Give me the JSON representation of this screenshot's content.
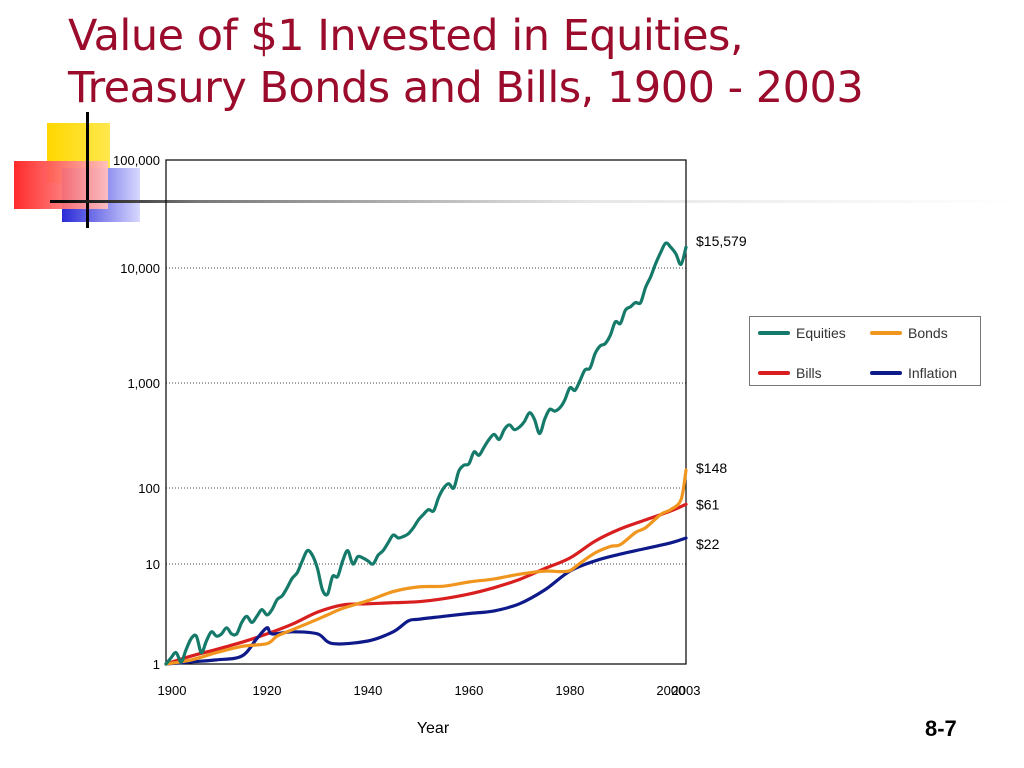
{
  "slide": {
    "title_line1": "Value of $1 Invested in Equities,",
    "title_line2": "Treasury Bonds and Bills, 1900 - 2003",
    "page_number": "8-7"
  },
  "colors": {
    "title": "#9b0c2c",
    "equities": "#167a6a",
    "bonds": "#f0961e",
    "bills": "#d81e1e",
    "inflation": "#0f1a8a"
  },
  "chart_data": {
    "type": "line",
    "title": "",
    "xlabel": "Year",
    "ylabel": "",
    "yscale": "log",
    "xlim": [
      1900,
      2003
    ],
    "ylim": [
      1,
      100000
    ],
    "xticks": [
      1900,
      1920,
      1940,
      1960,
      1980,
      2000,
      2003
    ],
    "ytick_labels": [
      "1",
      "10",
      "100",
      "1,000",
      "10,000",
      "100,000"
    ],
    "yticks": [
      1,
      10,
      100,
      1000,
      10000,
      100000
    ],
    "grid": "horizontal dotted",
    "legend_position": "right",
    "series": [
      {
        "name": "Equities",
        "color": "#167a6a",
        "end_label": "$15,579",
        "points": [
          [
            1900,
            1
          ],
          [
            1901,
            1.15
          ],
          [
            1902,
            1.3
          ],
          [
            1903,
            1.05
          ],
          [
            1904,
            1.4
          ],
          [
            1905,
            1.8
          ],
          [
            1906,
            1.9
          ],
          [
            1907,
            1.3
          ],
          [
            1908,
            1.7
          ],
          [
            1909,
            2.1
          ],
          [
            1910,
            1.9
          ],
          [
            1911,
            2
          ],
          [
            1912,
            2.3
          ],
          [
            1913,
            2
          ],
          [
            1914,
            2
          ],
          [
            1915,
            2.6
          ],
          [
            1916,
            3
          ],
          [
            1917,
            2.6
          ],
          [
            1918,
            3
          ],
          [
            1919,
            3.5
          ],
          [
            1920,
            3.1
          ],
          [
            1921,
            3.5
          ],
          [
            1922,
            4.4
          ],
          [
            1923,
            4.8
          ],
          [
            1924,
            5.8
          ],
          [
            1925,
            7.2
          ],
          [
            1926,
            8.2
          ],
          [
            1927,
            11
          ],
          [
            1928,
            15
          ],
          [
            1929,
            13
          ],
          [
            1930,
            9
          ],
          [
            1931,
            5.5
          ],
          [
            1932,
            5
          ],
          [
            1933,
            7.5
          ],
          [
            1934,
            7.5
          ],
          [
            1935,
            11
          ],
          [
            1936,
            15
          ],
          [
            1937,
            10
          ],
          [
            1938,
            12.5
          ],
          [
            1939,
            12
          ],
          [
            1940,
            11
          ],
          [
            1941,
            10
          ],
          [
            1942,
            13
          ],
          [
            1943,
            15
          ],
          [
            1944,
            19
          ],
          [
            1945,
            24
          ],
          [
            1946,
            22
          ],
          [
            1947,
            23
          ],
          [
            1948,
            25
          ],
          [
            1949,
            30
          ],
          [
            1950,
            38
          ],
          [
            1951,
            45
          ],
          [
            1952,
            52
          ],
          [
            1953,
            50
          ],
          [
            1954,
            75
          ],
          [
            1955,
            100
          ],
          [
            1956,
            110
          ],
          [
            1957,
            100
          ],
          [
            1958,
            145
          ],
          [
            1959,
            165
          ],
          [
            1960,
            170
          ],
          [
            1961,
            220
          ],
          [
            1962,
            205
          ],
          [
            1963,
            245
          ],
          [
            1964,
            290
          ],
          [
            1965,
            325
          ],
          [
            1966,
            290
          ],
          [
            1967,
            360
          ],
          [
            1968,
            400
          ],
          [
            1969,
            360
          ],
          [
            1970,
            380
          ],
          [
            1971,
            430
          ],
          [
            1972,
            520
          ],
          [
            1973,
            450
          ],
          [
            1974,
            330
          ],
          [
            1975,
            450
          ],
          [
            1976,
            560
          ],
          [
            1977,
            540
          ],
          [
            1978,
            580
          ],
          [
            1979,
            690
          ],
          [
            1980,
            900
          ],
          [
            1981,
            850
          ],
          [
            1982,
            1050
          ],
          [
            1983,
            1300
          ],
          [
            1984,
            1350
          ],
          [
            1985,
            1800
          ],
          [
            1986,
            2100
          ],
          [
            1987,
            2200
          ],
          [
            1988,
            2600
          ],
          [
            1989,
            3400
          ],
          [
            1990,
            3300
          ],
          [
            1991,
            4300
          ],
          [
            1992,
            4600
          ],
          [
            1993,
            5000
          ],
          [
            1994,
            5000
          ],
          [
            1995,
            6800
          ],
          [
            1996,
            8400
          ],
          [
            1997,
            11000
          ],
          [
            1998,
            14000
          ],
          [
            1999,
            17000
          ],
          [
            2000,
            15500
          ],
          [
            2001,
            13500
          ],
          [
            2002,
            10800
          ],
          [
            2003,
            15579
          ]
        ]
      },
      {
        "name": "Bonds",
        "color": "#f0961e",
        "end_label": "$148",
        "points": [
          [
            1900,
            1
          ],
          [
            1905,
            1.1
          ],
          [
            1910,
            1.3
          ],
          [
            1915,
            1.5
          ],
          [
            1920,
            1.6
          ],
          [
            1922,
            1.9
          ],
          [
            1925,
            2.2
          ],
          [
            1930,
            2.8
          ],
          [
            1932,
            3.1
          ],
          [
            1935,
            3.6
          ],
          [
            1940,
            4.3
          ],
          [
            1945,
            5.3
          ],
          [
            1950,
            5.9
          ],
          [
            1955,
            6.0
          ],
          [
            1960,
            6.6
          ],
          [
            1965,
            7.1
          ],
          [
            1970,
            7.9
          ],
          [
            1975,
            8.5
          ],
          [
            1978,
            8.4
          ],
          [
            1980,
            8.6
          ],
          [
            1982,
            10.2
          ],
          [
            1985,
            14
          ],
          [
            1988,
            17
          ],
          [
            1990,
            18
          ],
          [
            1993,
            26
          ],
          [
            1995,
            30
          ],
          [
            1998,
            45
          ],
          [
            2000,
            52
          ],
          [
            2002,
            70
          ],
          [
            2003,
            148
          ]
        ]
      },
      {
        "name": "Bills",
        "color": "#d81e1e",
        "end_label": "$61",
        "points": [
          [
            1900,
            1
          ],
          [
            1905,
            1.2
          ],
          [
            1910,
            1.4
          ],
          [
            1915,
            1.65
          ],
          [
            1920,
            2
          ],
          [
            1925,
            2.5
          ],
          [
            1930,
            3.3
          ],
          [
            1935,
            3.9
          ],
          [
            1940,
            4.0
          ],
          [
            1945,
            4.1
          ],
          [
            1950,
            4.2
          ],
          [
            1955,
            4.5
          ],
          [
            1960,
            5
          ],
          [
            1965,
            5.8
          ],
          [
            1970,
            7
          ],
          [
            1975,
            9
          ],
          [
            1980,
            12
          ],
          [
            1985,
            20
          ],
          [
            1990,
            29
          ],
          [
            1995,
            38
          ],
          [
            2000,
            50
          ],
          [
            2003,
            61
          ]
        ]
      },
      {
        "name": "Inflation",
        "color": "#0f1a8a",
        "end_label": "$22",
        "points": [
          [
            1900,
            1
          ],
          [
            1905,
            1.05
          ],
          [
            1910,
            1.1
          ],
          [
            1915,
            1.2
          ],
          [
            1918,
            1.8
          ],
          [
            1920,
            2.3
          ],
          [
            1921,
            2.0
          ],
          [
            1925,
            2.1
          ],
          [
            1930,
            2.0
          ],
          [
            1933,
            1.6
          ],
          [
            1940,
            1.7
          ],
          [
            1945,
            2.1
          ],
          [
            1948,
            2.7
          ],
          [
            1950,
            2.8
          ],
          [
            1955,
            3.0
          ],
          [
            1960,
            3.2
          ],
          [
            1965,
            3.4
          ],
          [
            1970,
            4.0
          ],
          [
            1975,
            5.5
          ],
          [
            1980,
            8.5
          ],
          [
            1985,
            11
          ],
          [
            1990,
            13.5
          ],
          [
            1995,
            16
          ],
          [
            2000,
            19
          ],
          [
            2003,
            22
          ]
        ]
      }
    ]
  }
}
